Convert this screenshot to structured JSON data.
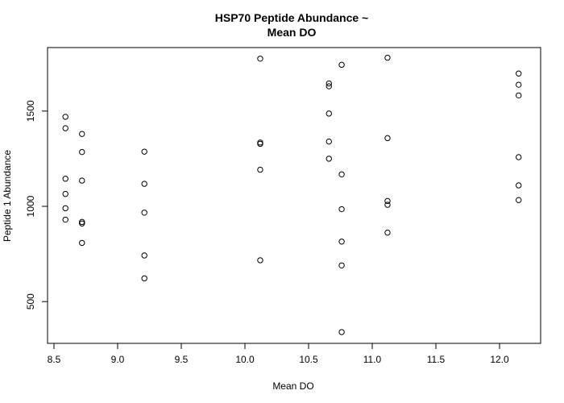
{
  "chart_data": {
    "type": "scatter",
    "title": "HSP70 Peptide Abundance ~",
    "subtitle": "Mean DO",
    "xlabel": "Mean DO",
    "ylabel": "Peptide 1 Abundance",
    "xlim": [
      8.5,
      12.3
    ],
    "ylim": [
      300,
      1820
    ],
    "xticks": [
      "8.5",
      "9.0",
      "9.5",
      "10.0",
      "10.5",
      "11.0",
      "11.5",
      "12.0"
    ],
    "yticks": [
      "500",
      "1000",
      "1500"
    ],
    "grid": false,
    "legend": false,
    "series": [
      {
        "points": [
          [
            8.59,
            1470
          ],
          [
            8.59,
            1410
          ],
          [
            8.59,
            1145
          ],
          [
            8.59,
            1065
          ],
          [
            8.59,
            990
          ],
          [
            8.59,
            930
          ],
          [
            8.72,
            1380
          ],
          [
            8.72,
            1285
          ],
          [
            8.72,
            1135
          ],
          [
            8.72,
            918
          ],
          [
            8.72,
            910
          ],
          [
            8.72,
            808
          ],
          [
            9.21,
            1287
          ],
          [
            9.21,
            1118
          ],
          [
            9.21,
            967
          ],
          [
            9.21,
            742
          ],
          [
            9.21,
            622
          ],
          [
            10.12,
            1775
          ],
          [
            10.12,
            1335
          ],
          [
            10.12,
            1328
          ],
          [
            10.12,
            1192
          ],
          [
            10.12,
            717
          ],
          [
            10.66,
            1645
          ],
          [
            10.66,
            1630
          ],
          [
            10.66,
            1487
          ],
          [
            10.66,
            1340
          ],
          [
            10.66,
            1250
          ],
          [
            10.76,
            1743
          ],
          [
            10.76,
            1168
          ],
          [
            10.76,
            985
          ],
          [
            10.76,
            815
          ],
          [
            10.76,
            690
          ],
          [
            10.76,
            340
          ],
          [
            11.12,
            1780
          ],
          [
            11.12,
            1358
          ],
          [
            11.12,
            1028
          ],
          [
            11.12,
            1008
          ],
          [
            11.12,
            862
          ],
          [
            12.15,
            1697
          ],
          [
            12.15,
            1638
          ],
          [
            12.15,
            1582
          ],
          [
            12.15,
            1258
          ],
          [
            12.15,
            1110
          ],
          [
            12.15,
            1033
          ]
        ]
      }
    ]
  }
}
